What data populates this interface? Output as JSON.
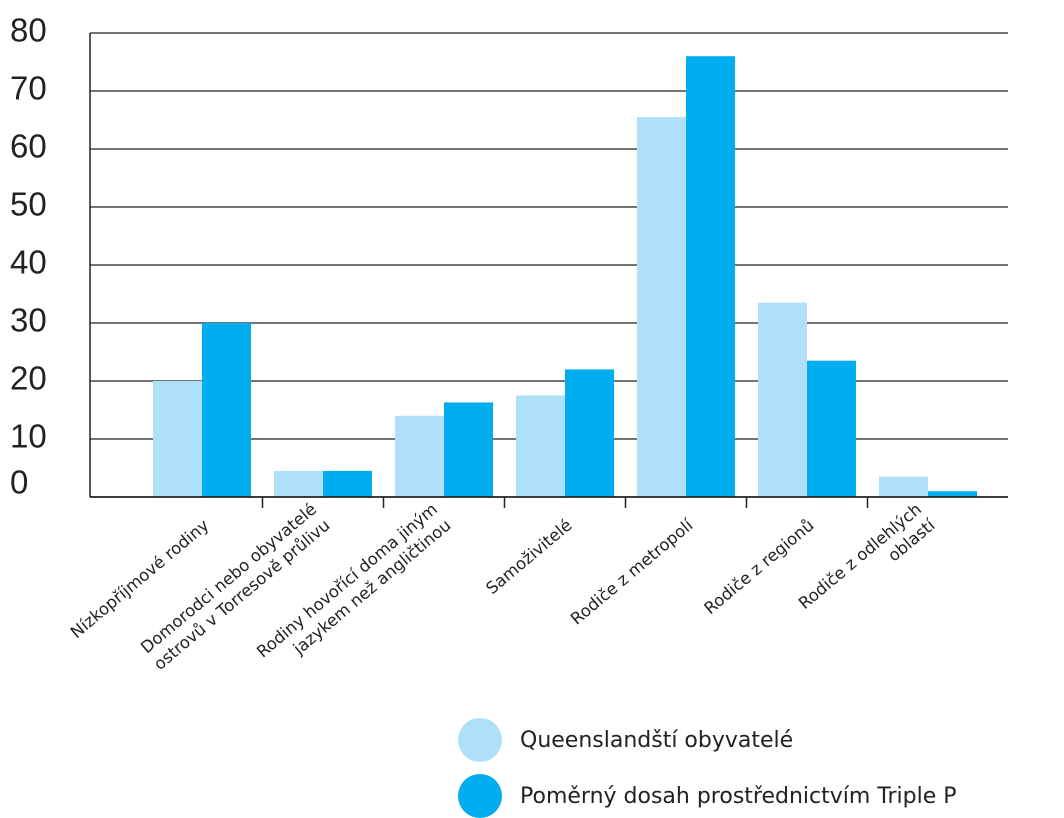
{
  "chart_data": {
    "type": "bar",
    "title": "",
    "xlabel": "",
    "ylabel": "",
    "ylim": [
      0,
      80
    ],
    "yticks": [
      0,
      10,
      20,
      30,
      40,
      50,
      60,
      70,
      80
    ],
    "grid": true,
    "legend_position": "bottom-right",
    "categories": [
      [
        "Nízkopříjmové rodiny"
      ],
      [
        "Domorodci nebo obyvatelé",
        "ostrovů v Torresově průlivu"
      ],
      [
        "Rodiny hovořící doma jiným",
        "jazykem než angličtinou"
      ],
      [
        "Samoživitelé"
      ],
      [
        "Rodiče z metropolí"
      ],
      [
        "Rodiče z regionů"
      ],
      [
        "Rodiče z odlehlých",
        "oblastí"
      ]
    ],
    "series": [
      {
        "name": "Queenslandští obyvatelé",
        "color": "#aee1f9",
        "values": [
          20,
          4.5,
          14,
          17.5,
          65.5,
          33.5,
          3.5
        ]
      },
      {
        "name": "Poměrný dosah prostřednictvím Triple P",
        "color": "#00adee",
        "values": [
          30,
          4.5,
          16.3,
          22,
          76,
          23.5,
          1
        ]
      }
    ]
  }
}
